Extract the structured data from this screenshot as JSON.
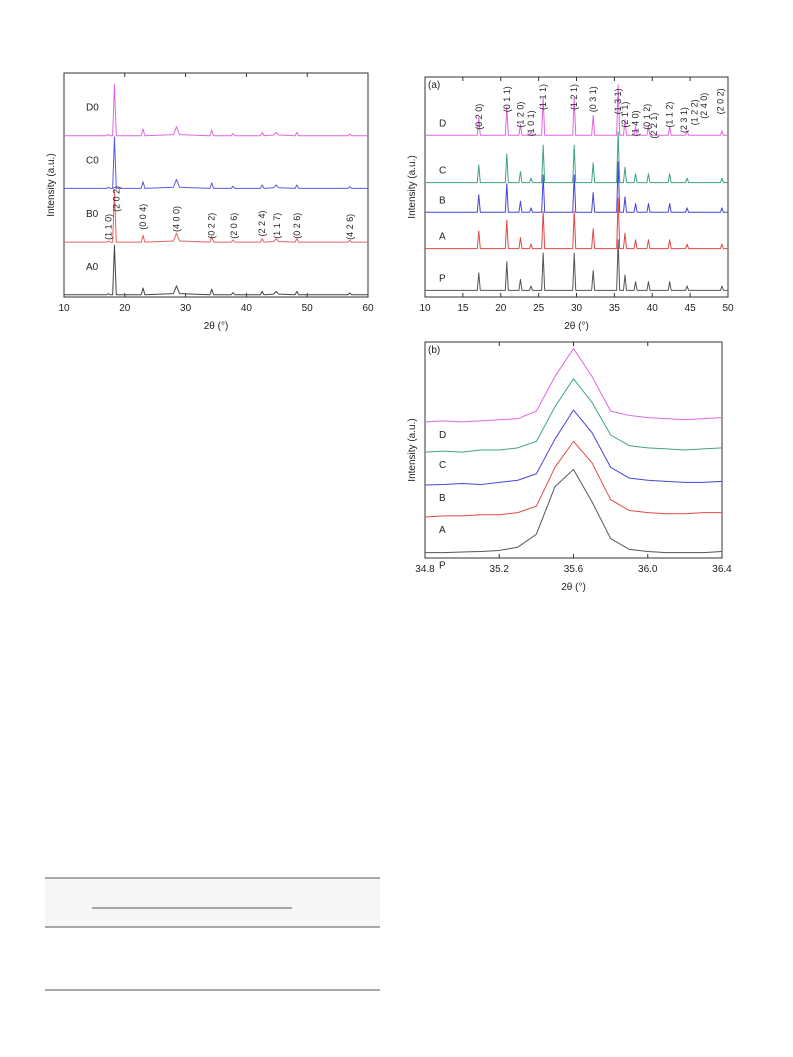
{
  "chart_data": [
    {
      "type": "line",
      "y_label": "Intensity (a.u.)",
      "x_label": "2θ (°)",
      "xlim": [
        10,
        60
      ],
      "xticks": [
        10,
        20,
        30,
        40,
        50,
        60
      ],
      "ylim": [
        0,
        100
      ],
      "x": [
        10,
        17.0,
        17.3,
        17.6,
        18.0,
        18.3,
        18.6,
        22.7,
        23.0,
        23.3,
        28.0,
        28.5,
        29.0,
        34.0,
        34.3,
        34.6,
        37.5,
        37.8,
        38.1,
        42.3,
        42.6,
        42.9,
        44.5,
        44.9,
        45.3,
        48.0,
        48.3,
        48.6,
        56.7,
        57.0,
        57.3,
        60
      ],
      "series": [
        {
          "name": "D0",
          "color": "#e066e0",
          "values": [
            72,
            72,
            72.5,
            72,
            72,
            95,
            72,
            72,
            75,
            72,
            72.5,
            76,
            72.5,
            72,
            74.5,
            72,
            72,
            73,
            72,
            72,
            73.5,
            72,
            72.3,
            73.5,
            72.3,
            72,
            73.5,
            72,
            72,
            72.8,
            72,
            72
          ]
        },
        {
          "name": "C0",
          "color": "#5a5ae6",
          "values": [
            48.5,
            48.5,
            49,
            48.5,
            48.5,
            71.5,
            48.5,
            48.5,
            51.5,
            48.5,
            49,
            52.5,
            49,
            48.5,
            51,
            48.5,
            48.5,
            49.5,
            48.5,
            48.5,
            50,
            48.5,
            48.8,
            50,
            48.8,
            48.5,
            50,
            48.5,
            48.5,
            49.3,
            48.5,
            48.5
          ]
        },
        {
          "name": "B0",
          "color": "#e06262",
          "values": [
            24.5,
            24.5,
            25,
            24.5,
            24.5,
            47.5,
            24.5,
            24.5,
            27.5,
            24.5,
            25,
            28.5,
            25,
            24.5,
            27,
            24.5,
            24.5,
            25.5,
            24.5,
            24.5,
            26,
            24.5,
            24.8,
            26,
            24.8,
            24.5,
            26,
            24.5,
            24.5,
            25.3,
            24.5,
            24.5
          ]
        },
        {
          "name": "A0",
          "color": "#444444",
          "values": [
            1,
            1,
            1.5,
            1,
            1,
            23,
            1,
            1,
            4,
            1,
            1.5,
            5,
            1.5,
            1,
            3.5,
            1,
            1,
            2,
            1,
            1,
            2.5,
            1,
            1.3,
            2.5,
            1.3,
            1,
            2.5,
            1,
            1,
            1.8,
            1,
            1
          ]
        }
      ],
      "annotations": [
        {
          "text": "(1 1 0)",
          "x": 17.3,
          "y": 25.5
        },
        {
          "text": "(2 0 2)",
          "x": 18.6,
          "y": 38
        },
        {
          "text": "(0 0 4)",
          "x": 23,
          "y": 30
        },
        {
          "text": "(4 0 0)",
          "x": 28.5,
          "y": 29
        },
        {
          "text": "(0 2 2)",
          "x": 34.3,
          "y": 26
        },
        {
          "text": "(2 0 6)",
          "x": 38,
          "y": 26
        },
        {
          "text": "(2 2 4)",
          "x": 42.6,
          "y": 27
        },
        {
          "text": "(1 1 7)",
          "x": 45,
          "y": 26
        },
        {
          "text": "(0 2 6)",
          "x": 48.3,
          "y": 26
        },
        {
          "text": "(4 2 6)",
          "x": 57,
          "y": 25.5
        }
      ]
    },
    {
      "type": "line",
      "panel": "(a)",
      "y_label": "Intensity (a.u.)",
      "x_label": "2θ (°)",
      "xlim": [
        10,
        50
      ],
      "xticks": [
        10,
        15,
        20,
        25,
        30,
        35,
        40,
        45,
        50
      ],
      "ylim": [
        0,
        100
      ],
      "x": [
        10,
        16.9,
        17.1,
        17.3,
        20.6,
        20.8,
        21.0,
        22.4,
        22.6,
        22.8,
        23.8,
        24.0,
        24.2,
        25.4,
        25.6,
        25.8,
        29.5,
        29.7,
        29.9,
        32.0,
        32.2,
        32.4,
        35.3,
        35.5,
        35.7,
        36.2,
        36.4,
        36.6,
        37.6,
        37.8,
        38.0,
        39.3,
        39.5,
        39.7,
        42.1,
        42.3,
        42.5,
        44.4,
        44.6,
        44.8,
        49.0,
        49.2,
        49.4,
        50
      ],
      "series": [
        {
          "name": "D",
          "color": "#e066e0",
          "values": [
            73.5,
            73.5,
            81.5,
            73.5,
            73.5,
            86.5,
            73.5,
            73.5,
            78.5,
            73.5,
            73.5,
            75.5,
            73.5,
            73.5,
            90.5,
            73.5,
            73.5,
            90.5,
            73.5,
            73.5,
            82.5,
            73.5,
            73.5,
            96.5,
            73.5,
            73.5,
            80.5,
            73.5,
            73.5,
            77.5,
            73.5,
            73.5,
            77.5,
            73.5,
            73.5,
            77.5,
            73.5,
            73.5,
            75.5,
            73.5,
            73.5,
            75.5,
            73.5,
            73.5
          ]
        },
        {
          "name": "C",
          "color": "#3fa383",
          "values": [
            52,
            52,
            60,
            52,
            52,
            65,
            52,
            52,
            57,
            52,
            52,
            54,
            52,
            52,
            69,
            52,
            52,
            69,
            52,
            52,
            61,
            52,
            52,
            75,
            52,
            52,
            59,
            52,
            52,
            56,
            52,
            52,
            56,
            52,
            52,
            56,
            52,
            52,
            54,
            52,
            52,
            54,
            52,
            52
          ]
        },
        {
          "name": "B",
          "color": "#4646d6",
          "values": [
            38.5,
            38.5,
            46.5,
            38.5,
            38.5,
            51.5,
            38.5,
            38.5,
            43.5,
            38.5,
            38.5,
            40.5,
            38.5,
            38.5,
            55.5,
            38.5,
            38.5,
            55.5,
            38.5,
            38.5,
            47.5,
            38.5,
            38.5,
            61.5,
            38.5,
            38.5,
            45.5,
            38.5,
            38.5,
            42.5,
            38.5,
            38.5,
            42.5,
            38.5,
            38.5,
            42.5,
            38.5,
            38.5,
            40.5,
            38.5,
            38.5,
            40.5,
            38.5,
            38.5
          ]
        },
        {
          "name": "A",
          "color": "#e04848",
          "values": [
            22,
            22,
            30,
            22,
            22,
            35,
            22,
            22,
            27,
            22,
            22,
            24,
            22,
            22,
            39,
            22,
            22,
            39,
            22,
            22,
            31,
            22,
            22,
            45,
            22,
            22,
            29,
            22,
            22,
            26,
            22,
            22,
            26,
            22,
            22,
            26,
            22,
            22,
            24,
            22,
            22,
            24,
            22,
            22
          ]
        },
        {
          "name": "P",
          "color": "#555555",
          "values": [
            3,
            3,
            11,
            3,
            3,
            16,
            3,
            3,
            8,
            3,
            3,
            5,
            3,
            3,
            20,
            3,
            3,
            20,
            3,
            3,
            12,
            3,
            3,
            26,
            3,
            3,
            10,
            3,
            3,
            7,
            3,
            3,
            7,
            3,
            3,
            7,
            3,
            3,
            5,
            3,
            3,
            5,
            3,
            3
          ]
        }
      ],
      "annotations": [
        {
          "text": "(0 2 0)",
          "x": 17.1,
          "y": 76
        },
        {
          "text": "(0 1 1)",
          "x": 20.8,
          "y": 84
        },
        {
          "text": "(1 2 0)",
          "x": 22.6,
          "y": 77
        },
        {
          "text": "(1 0 1)",
          "x": 24,
          "y": 73
        },
        {
          "text": "(1 1 1)",
          "x": 25.6,
          "y": 85
        },
        {
          "text": "(1 2 1)",
          "x": 29.7,
          "y": 85
        },
        {
          "text": "(0 3 1)",
          "x": 32.2,
          "y": 84
        },
        {
          "text": "(1 3 1)",
          "x": 35.5,
          "y": 83
        },
        {
          "text": "(2 1 1)",
          "x": 36.4,
          "y": 77
        },
        {
          "text": "(1 4 0)",
          "x": 37.8,
          "y": 73
        },
        {
          "text": "(0 1 2)",
          "x": 39.3,
          "y": 76
        },
        {
          "text": "(2 2 1)",
          "x": 40.2,
          "y": 72
        },
        {
          "text": "(1 1 2)",
          "x": 42.3,
          "y": 77
        },
        {
          "text": "(2 3 1)",
          "x": 44.2,
          "y": 74.5
        },
        {
          "text": "(1 2 2)",
          "x": 45.6,
          "y": 78
        },
        {
          "text": "(2 4 0)",
          "x": 46.8,
          "y": 81
        },
        {
          "text": "(2 0 2)",
          "x": 49,
          "y": 83
        }
      ]
    },
    {
      "type": "line",
      "panel": "(b)",
      "y_label": "Intensity (a.u.)",
      "x_label": "2θ (°)",
      "xlim": [
        34.8,
        36.4
      ],
      "xticks": [
        34.8,
        35.2,
        35.6,
        {
          "value": 36,
          "label": "36.0"
        },
        36.4
      ],
      "ylim": [
        0,
        100
      ],
      "x": [
        34.8,
        34.9,
        35.0,
        35.1,
        35.2,
        35.3,
        35.4,
        35.5,
        35.6,
        35.7,
        35.8,
        35.9,
        36.0,
        36.1,
        36.2,
        36.3,
        36.4
      ],
      "series": [
        {
          "name": "D",
          "color": "#e066e0",
          "values": [
            63,
            63.5,
            63,
            63.5,
            64,
            64.5,
            68,
            84,
            97,
            84,
            68,
            66,
            65,
            64.5,
            64,
            64.5,
            65
          ]
        },
        {
          "name": "C",
          "color": "#3fa383",
          "values": [
            49,
            49.5,
            49,
            50,
            50,
            51,
            54,
            70,
            83,
            72,
            57,
            52,
            51,
            50.5,
            50,
            50.5,
            51
          ]
        },
        {
          "name": "B",
          "color": "#4646d6",
          "values": [
            33.8,
            34,
            34.5,
            34,
            35,
            36,
            39,
            55,
            68.5,
            58,
            42,
            37,
            36,
            35.5,
            35,
            35,
            35.5
          ]
        },
        {
          "name": "A",
          "color": "#e04848",
          "values": [
            19,
            19.5,
            19.5,
            20,
            20,
            21,
            24,
            42,
            54,
            44,
            27,
            22,
            21,
            20.5,
            20.5,
            21,
            21
          ]
        },
        {
          "name": "P",
          "color": "#555555",
          "values": [
            2.5,
            2.5,
            2.8,
            3,
            3.5,
            5,
            11,
            33,
            41,
            26,
            9,
            4,
            3,
            2.5,
            2.5,
            2.5,
            3
          ]
        }
      ]
    }
  ]
}
